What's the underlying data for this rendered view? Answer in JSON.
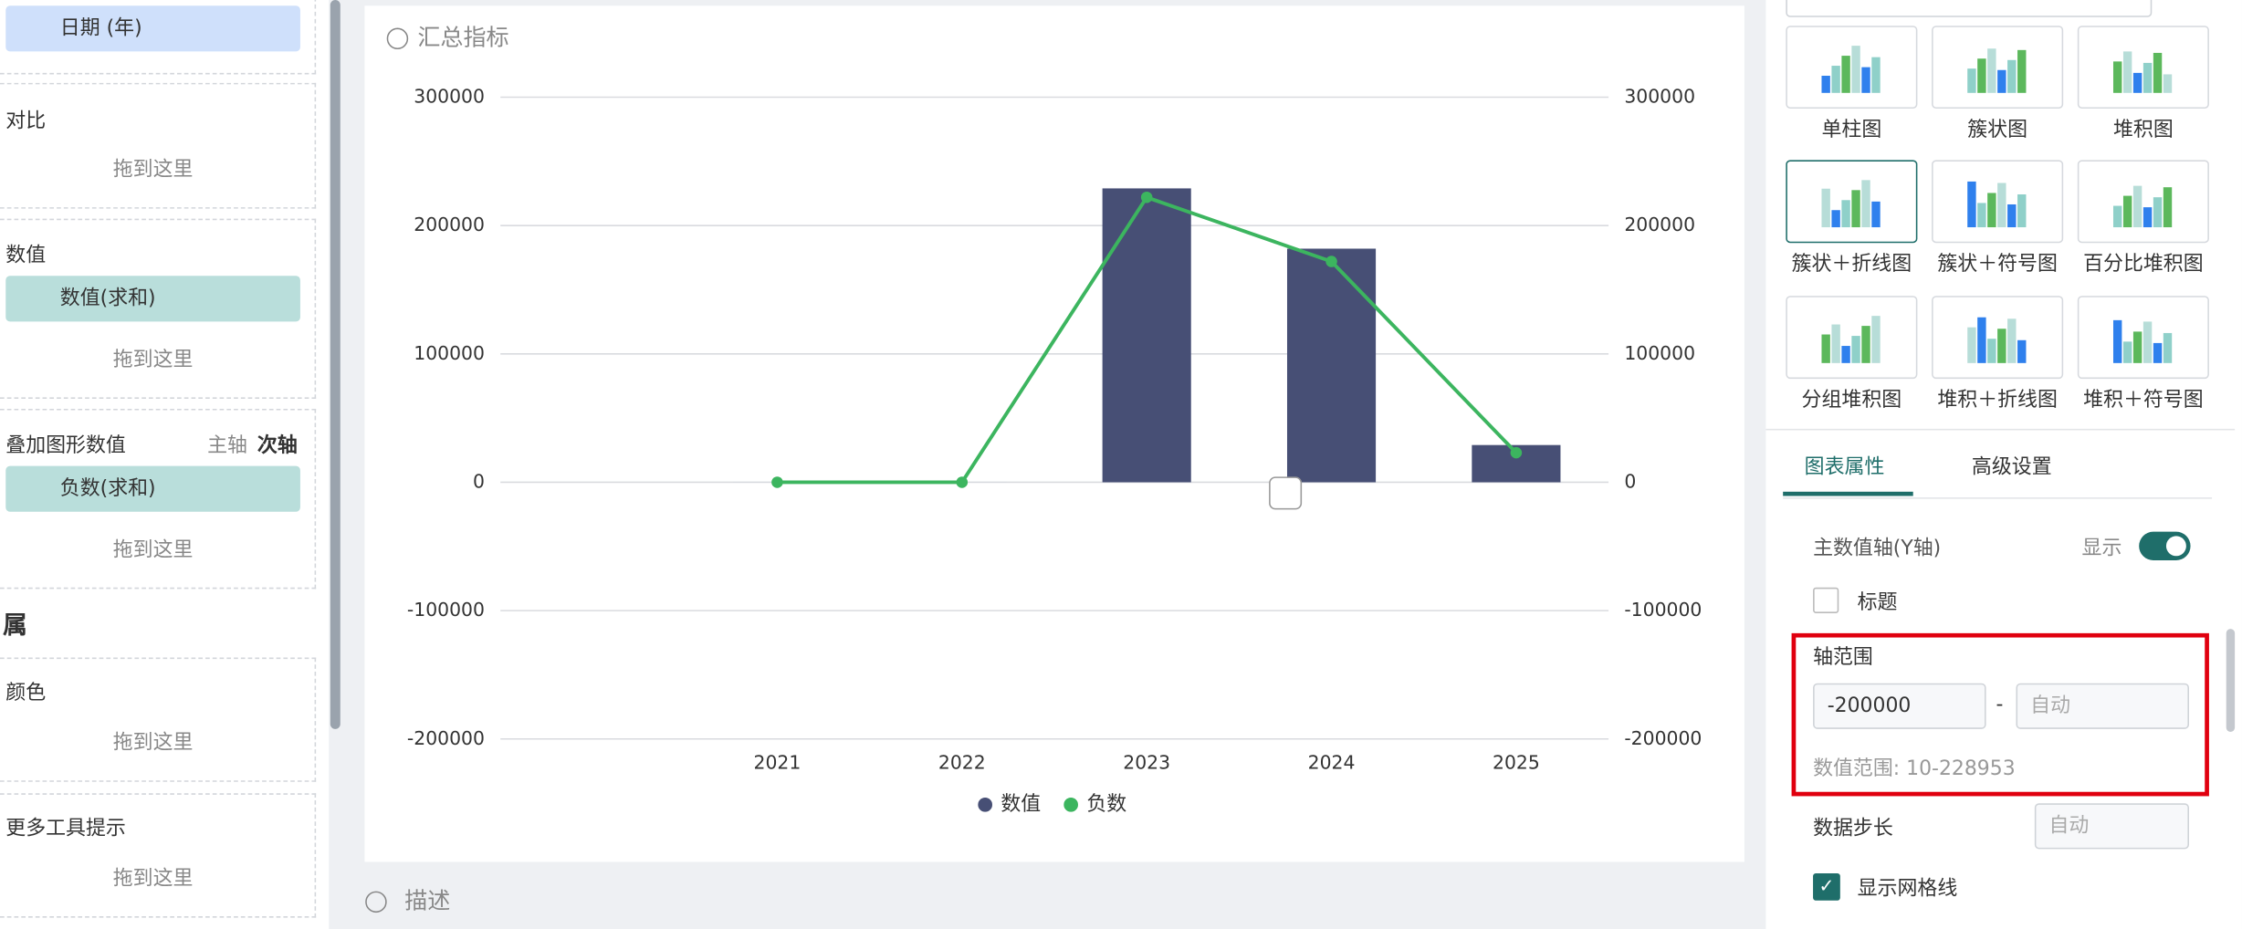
{
  "left_panel": {
    "date_field": "日期 (年)",
    "compare_label": "对比",
    "drop_hint": "拖到这里",
    "value_label": "数值",
    "value_field": "数值(求和)",
    "overlay_label": "叠加图形数值",
    "primary_axis": "主轴",
    "secondary_axis": "次轴",
    "overlay_field": "负数(求和)",
    "attr_label": "属",
    "color_label": "颜色",
    "tooltip_label": "更多工具提示"
  },
  "chart_card": {
    "add_metric": "汇总指标",
    "description": "描述"
  },
  "chart_data": {
    "type": "combo",
    "categories": [
      "2021",
      "2022",
      "2023",
      "2024",
      "2025"
    ],
    "series": [
      {
        "name": "数值",
        "type": "bar",
        "color": "#474f75",
        "values": [
          10,
          10,
          228953,
          182000,
          29000
        ]
      },
      {
        "name": "负数",
        "type": "line",
        "axis": "y2",
        "color": "#3cb55f",
        "values": [
          0,
          0,
          222000,
          172000,
          23000
        ]
      }
    ],
    "ylim": [
      -200000,
      300000
    ],
    "yticks": [
      -200000,
      -100000,
      0,
      100000,
      200000,
      300000
    ],
    "y2lim": [
      -200000,
      300000
    ],
    "y2ticks": [
      -200000,
      -100000,
      0,
      100000,
      200000,
      300000
    ],
    "grid": true,
    "legend": "bottom"
  },
  "right_panel": {
    "chart_types": [
      "单柱图",
      "簇状图",
      "堆积图",
      "簇状＋折线图",
      "簇状＋符号图",
      "百分比堆积图",
      "分组堆积图",
      "堆积＋折线图",
      "堆积＋符号图"
    ],
    "tabs": [
      "图表属性",
      "高级设置"
    ],
    "axis_section": "主数值轴(Y轴)",
    "show_label": "显示",
    "title_checkbox": "标题",
    "range_label": "轴范围",
    "range_min": "-200000",
    "range_separator": "-",
    "range_max_placeholder": "自动",
    "range_hint": "数值范围: 10-228953",
    "step_label": "数据步长",
    "step_placeholder": "自动",
    "grid_checkbox": "显示网格线"
  }
}
